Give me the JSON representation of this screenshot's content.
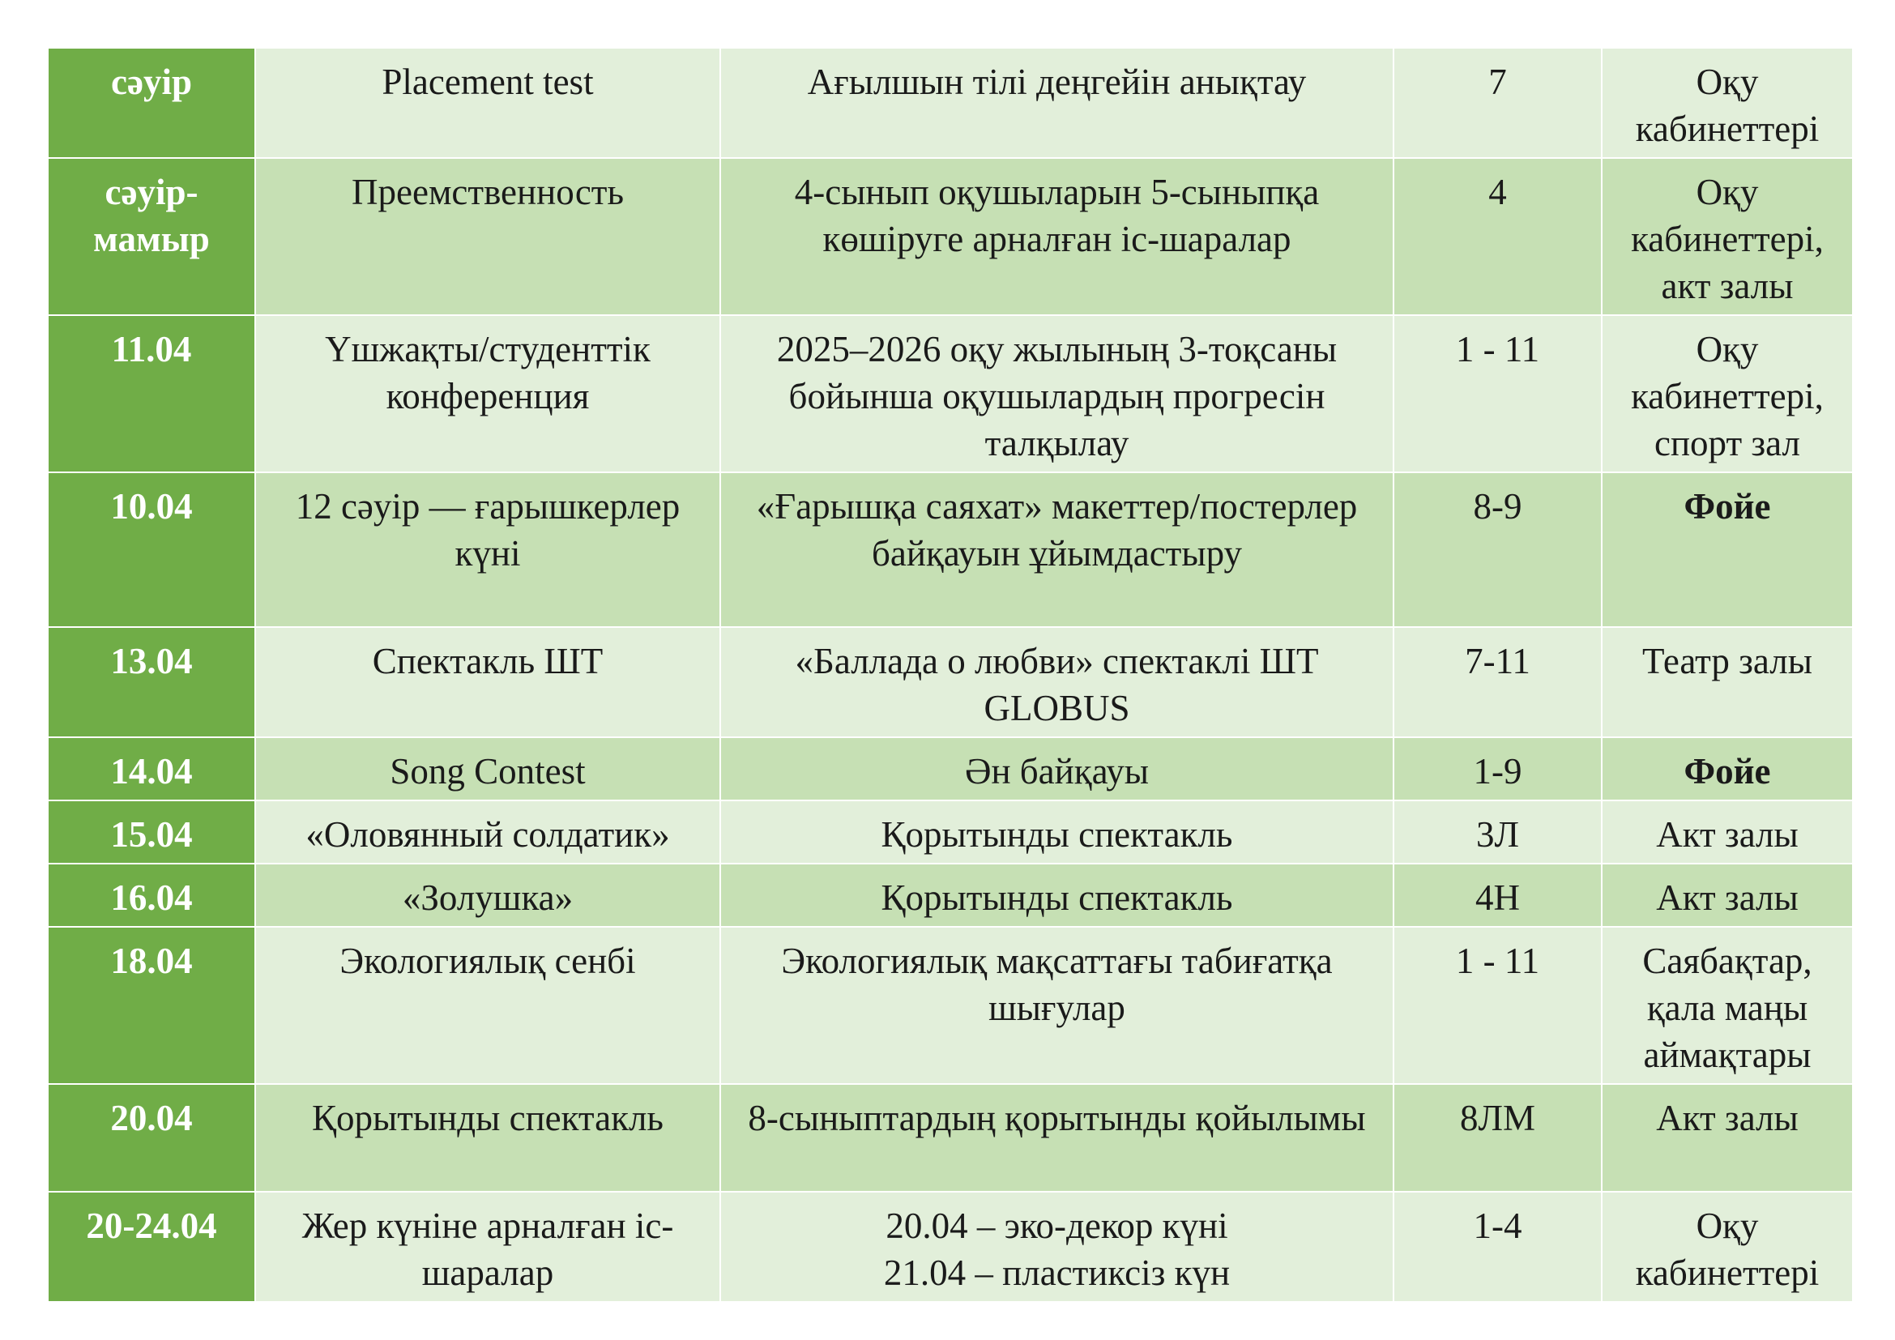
{
  "rows": [
    {
      "date": "сәуір",
      "event": "Placement test",
      "description": "Ағылшын тілі деңгейін анықтау",
      "grades": "7",
      "venue": "Оқу кабинеттері"
    },
    {
      "date": "сәуір-мамыр",
      "event": "Преемственность",
      "description": "4-сынып оқушыларын 5-сыныпқа көшіруге арналған іс-шаралар",
      "grades": "4",
      "venue": "Оқу кабинеттері, акт залы"
    },
    {
      "date": "11.04",
      "event": "Үшжақты/студенттік конференция",
      "description": "2025–2026 оқу жылының 3-тоқсаны бойынша оқушылардың прогресін талқылау",
      "grades": "1 - 11",
      "venue": "Оқу кабинеттері, спорт зал"
    },
    {
      "date": "10.04",
      "event": "12 сәуір — ғарышкерлер күні",
      "description": "«Ғарышқа саяхат» макеттер/постерлер байқауын ұйымдастыру",
      "grades": "8-9",
      "venue": "Фойе"
    },
    {
      "date": "13.04",
      "event": "Спектакль ШТ",
      "description": "«Баллада о любви» спектаклі ШТ GLOBUS",
      "grades": "7-11",
      "venue": "Театр залы"
    },
    {
      "date": "14.04",
      "event": "Song Contest",
      "description": "Ән байқауы",
      "grades": "1-9",
      "venue": "Фойе"
    },
    {
      "date": "15.04",
      "event": "«Оловянный солдатик»",
      "description": "Қорытынды спектакль",
      "grades": "3Л",
      "venue": "Акт залы"
    },
    {
      "date": "16.04",
      "event": "«Золушка»",
      "description": "Қорытынды спектакль",
      "grades": "4Н",
      "venue": "Акт залы"
    },
    {
      "date": "18.04",
      "event": "Экологиялық сенбі",
      "description": "Экологиялық мақсаттағы табиғатқа шығулар",
      "grades": "1 - 11",
      "venue": "Саябақтар, қала маңы аймақтары"
    },
    {
      "date": "20.04",
      "event": "Қорытынды спектакль",
      "description": "8-сыныптардың қорытынды қойылымы",
      "grades": "8ЛМ",
      "venue": "Акт залы"
    },
    {
      "date": "20-24.04",
      "event": "Жер күніне арналған іс-шаралар",
      "description_lines": [
        "20.04 – эко-декор күні",
        "21.04 – пластиксіз күн"
      ],
      "grades": "1-4",
      "venue": "Оқу кабинеттері"
    }
  ]
}
